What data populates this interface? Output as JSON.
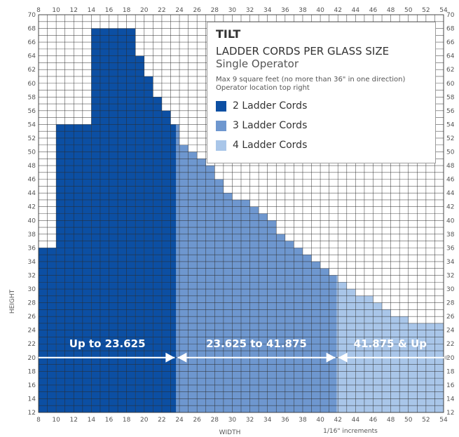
{
  "chart_data": {
    "type": "area",
    "xlabel": "WIDTH",
    "ylabel": "HEIGHT",
    "xlim": [
      8,
      54
    ],
    "ylim": [
      12,
      70
    ],
    "grid_step": 1,
    "x_ticks": [
      8,
      10,
      12,
      14,
      16,
      18,
      20,
      22,
      24,
      26,
      28,
      30,
      32,
      34,
      36,
      38,
      40,
      42,
      44,
      46,
      48,
      50,
      52,
      54
    ],
    "y_ticks": [
      12,
      14,
      16,
      18,
      20,
      22,
      24,
      26,
      28,
      30,
      32,
      34,
      36,
      38,
      40,
      42,
      44,
      46,
      48,
      50,
      52,
      54,
      56,
      58,
      60,
      62,
      64,
      66,
      68,
      70
    ],
    "x_note": "1/16\" increments",
    "series": [
      {
        "name": "2 Ladder Cords",
        "color": "#0c4fa3",
        "x_range": [
          8,
          23.625
        ]
      },
      {
        "name": "3 Ladder Cords",
        "color": "#6e97cf",
        "x_range": [
          23.625,
          41.875
        ]
      },
      {
        "name": "4 Ladder Cords",
        "color": "#a9c6e9",
        "x_range": [
          41.875,
          54
        ]
      }
    ],
    "max_height_profile": [
      {
        "x": [
          8,
          10
        ],
        "y": 36
      },
      {
        "x": [
          10,
          14
        ],
        "y": 54
      },
      {
        "x": [
          14,
          19
        ],
        "y": 68
      },
      {
        "x": [
          19,
          20
        ],
        "y": 64
      },
      {
        "x": [
          20,
          21
        ],
        "y": 61
      },
      {
        "x": [
          21,
          22
        ],
        "y": 58
      },
      {
        "x": [
          22,
          23
        ],
        "y": 56
      },
      {
        "x": [
          23,
          24
        ],
        "y": 54
      },
      {
        "x": [
          24,
          25
        ],
        "y": 51
      },
      {
        "x": [
          25,
          26
        ],
        "y": 50
      },
      {
        "x": [
          26,
          27
        ],
        "y": 49
      },
      {
        "x": [
          27,
          28
        ],
        "y": 48
      },
      {
        "x": [
          28,
          29
        ],
        "y": 46
      },
      {
        "x": [
          29,
          30
        ],
        "y": 44
      },
      {
        "x": [
          30,
          32
        ],
        "y": 43
      },
      {
        "x": [
          32,
          33
        ],
        "y": 42
      },
      {
        "x": [
          33,
          34
        ],
        "y": 41
      },
      {
        "x": [
          34,
          35
        ],
        "y": 40
      },
      {
        "x": [
          35,
          36
        ],
        "y": 38
      },
      {
        "x": [
          36,
          37
        ],
        "y": 37
      },
      {
        "x": [
          37,
          38
        ],
        "y": 36
      },
      {
        "x": [
          38,
          39
        ],
        "y": 35
      },
      {
        "x": [
          39,
          40
        ],
        "y": 34
      },
      {
        "x": [
          40,
          41
        ],
        "y": 33
      },
      {
        "x": [
          41,
          42
        ],
        "y": 32
      },
      {
        "x": [
          42,
          43
        ],
        "y": 31
      },
      {
        "x": [
          43,
          44
        ],
        "y": 30
      },
      {
        "x": [
          44,
          46
        ],
        "y": 29
      },
      {
        "x": [
          46,
          47
        ],
        "y": 28
      },
      {
        "x": [
          47,
          48
        ],
        "y": 27
      },
      {
        "x": [
          48,
          50
        ],
        "y": 26
      },
      {
        "x": [
          50,
          54
        ],
        "y": 25
      }
    ],
    "zones": [
      {
        "label": "Up to 23.625",
        "from": 8,
        "to": 23.625
      },
      {
        "label": "23.625 to 41.875",
        "from": 23.625,
        "to": 41.875
      },
      {
        "label": "41.875 & Up",
        "from": 41.875,
        "to": 54
      }
    ],
    "arrow_y": 20
  },
  "legend": {
    "title": "TILT",
    "subtitle": "LADDER CORDS PER GLASS SIZE",
    "subtitle2": "Single Operator",
    "note1": "Max 9 square feet (no more than 36\" in one direction)",
    "note2": "Operator location top right",
    "entries": [
      {
        "label": "2 Ladder Cords",
        "color": "#0c4fa3"
      },
      {
        "label": "3 Ladder Cords",
        "color": "#6e97cf"
      },
      {
        "label": "4 Ladder Cords",
        "color": "#a9c6e9"
      }
    ]
  }
}
